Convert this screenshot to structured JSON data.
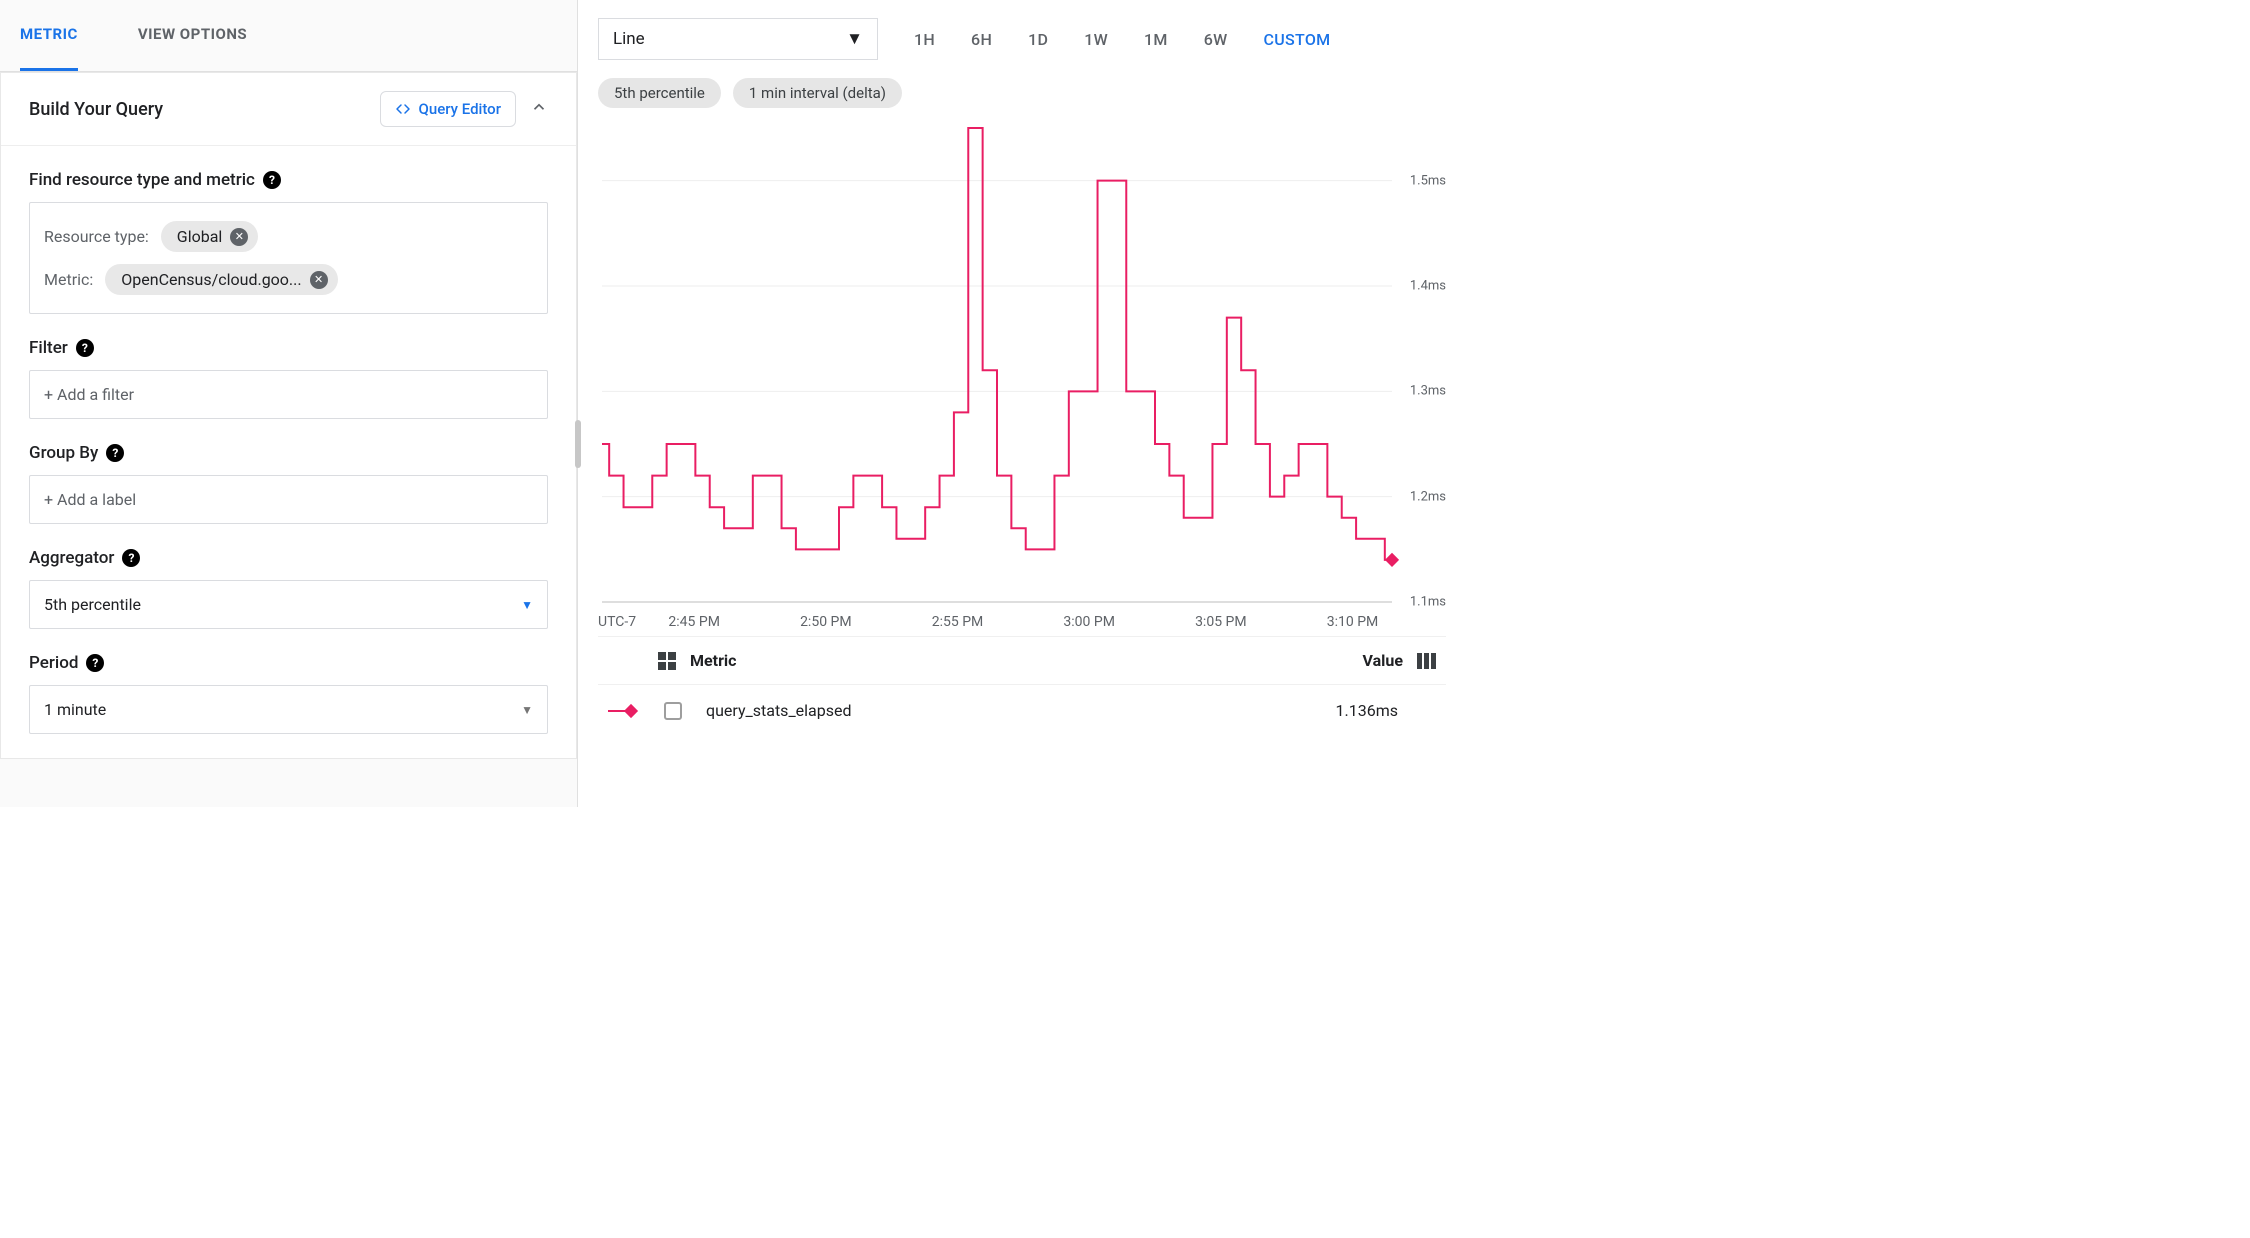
{
  "tabs": {
    "metric": "METRIC",
    "view_options": "VIEW OPTIONS"
  },
  "query": {
    "title": "Build Your Query",
    "editor_btn": "Query Editor",
    "find_label": "Find resource type and metric",
    "resource_type_key": "Resource type:",
    "resource_type_value": "Global",
    "metric_key": "Metric:",
    "metric_value": "OpenCensus/cloud.goo...",
    "filter_label": "Filter",
    "filter_placeholder": "+ Add a filter",
    "groupby_label": "Group By",
    "groupby_placeholder": "+ Add a label",
    "aggregator_label": "Aggregator",
    "aggregator_value": "5th percentile",
    "period_label": "Period",
    "period_value": "1 minute"
  },
  "right": {
    "chart_type": "Line",
    "ranges": [
      "1H",
      "6H",
      "1D",
      "1W",
      "1M",
      "6W",
      "CUSTOM"
    ],
    "range_active": "CUSTOM",
    "badge1": "5th percentile",
    "badge2": "1 min interval (delta)",
    "legend_metric_hdr": "Metric",
    "legend_value_hdr": "Value",
    "legend_name": "query_stats_elapsed",
    "legend_value": "1.136ms"
  },
  "chart": {
    "type": "line",
    "line_color": "#e91e63",
    "grid_color": "#eeeeee",
    "axis_color": "#bdbdbd",
    "background_color": "#ffffff",
    "tz_label": "UTC-7",
    "x_ticks": [
      "2:45 PM",
      "2:50 PM",
      "2:55 PM",
      "3:00 PM",
      "3:05 PM",
      "3:10 PM"
    ],
    "y_ticks": [
      "1.1ms",
      "1.2ms",
      "1.3ms",
      "1.4ms",
      "1.5ms"
    ],
    "ylim": [
      1.1,
      1.55
    ],
    "values": [
      1.25,
      1.22,
      1.19,
      1.19,
      1.22,
      1.25,
      1.25,
      1.22,
      1.19,
      1.17,
      1.17,
      1.22,
      1.22,
      1.17,
      1.15,
      1.15,
      1.15,
      1.19,
      1.22,
      1.22,
      1.19,
      1.16,
      1.16,
      1.19,
      1.22,
      1.28,
      1.55,
      1.32,
      1.22,
      1.17,
      1.15,
      1.15,
      1.22,
      1.3,
      1.3,
      1.5,
      1.5,
      1.3,
      1.3,
      1.25,
      1.22,
      1.18,
      1.18,
      1.25,
      1.37,
      1.32,
      1.25,
      1.2,
      1.22,
      1.25,
      1.25,
      1.2,
      1.18,
      1.16,
      1.16,
      1.14
    ],
    "end_marker": true,
    "line_width": 2
  }
}
